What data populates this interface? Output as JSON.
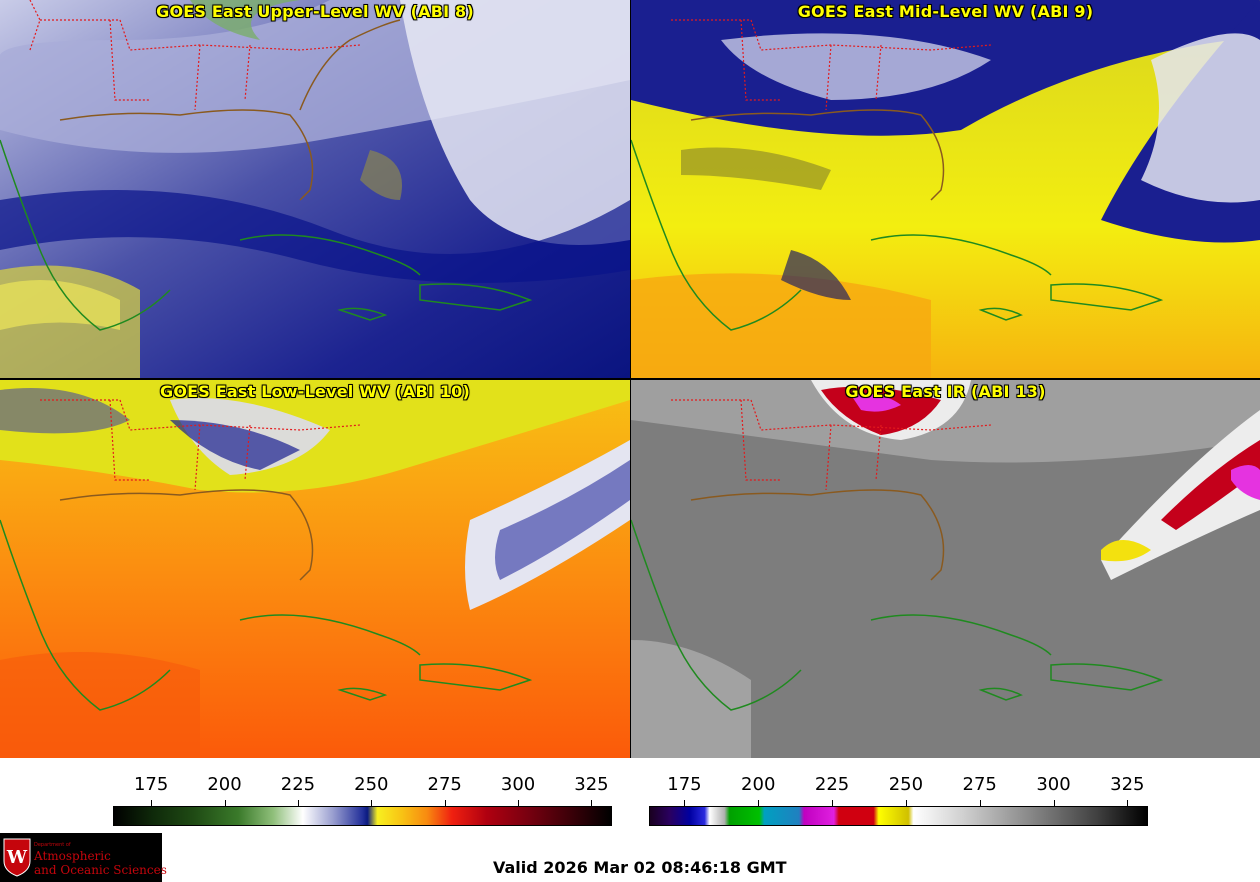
{
  "panels": [
    {
      "title": "GOES East Upper-Level WV (ABI 8)",
      "palette": "wv-upper"
    },
    {
      "title": "GOES East Mid-Level WV (ABI 9)",
      "palette": "wv-mid"
    },
    {
      "title": "GOES East Low-Level WV (ABI 10)",
      "palette": "wv-low"
    },
    {
      "title": "GOES East IR (ABI 13)",
      "palette": "ir"
    }
  ],
  "colorbars": {
    "wv": {
      "ticks": [
        "175",
        "200",
        "225",
        "250",
        "275",
        "300",
        "325"
      ],
      "range": [
        162,
        332
      ]
    },
    "ir": {
      "ticks": [
        "175",
        "200",
        "225",
        "250",
        "275",
        "300",
        "325"
      ],
      "range": [
        163,
        332
      ]
    }
  },
  "colors": {
    "coastline": "#1f8a1f",
    "borders": "#e31a1c",
    "title": "#ffff00"
  },
  "footer": {
    "valid_time": "Valid 2026 Mar 02 08:46:18 GMT",
    "logo": {
      "dept": "Department of",
      "line1": "Atmospheric",
      "line2": "and Oceanic Sciences"
    }
  }
}
